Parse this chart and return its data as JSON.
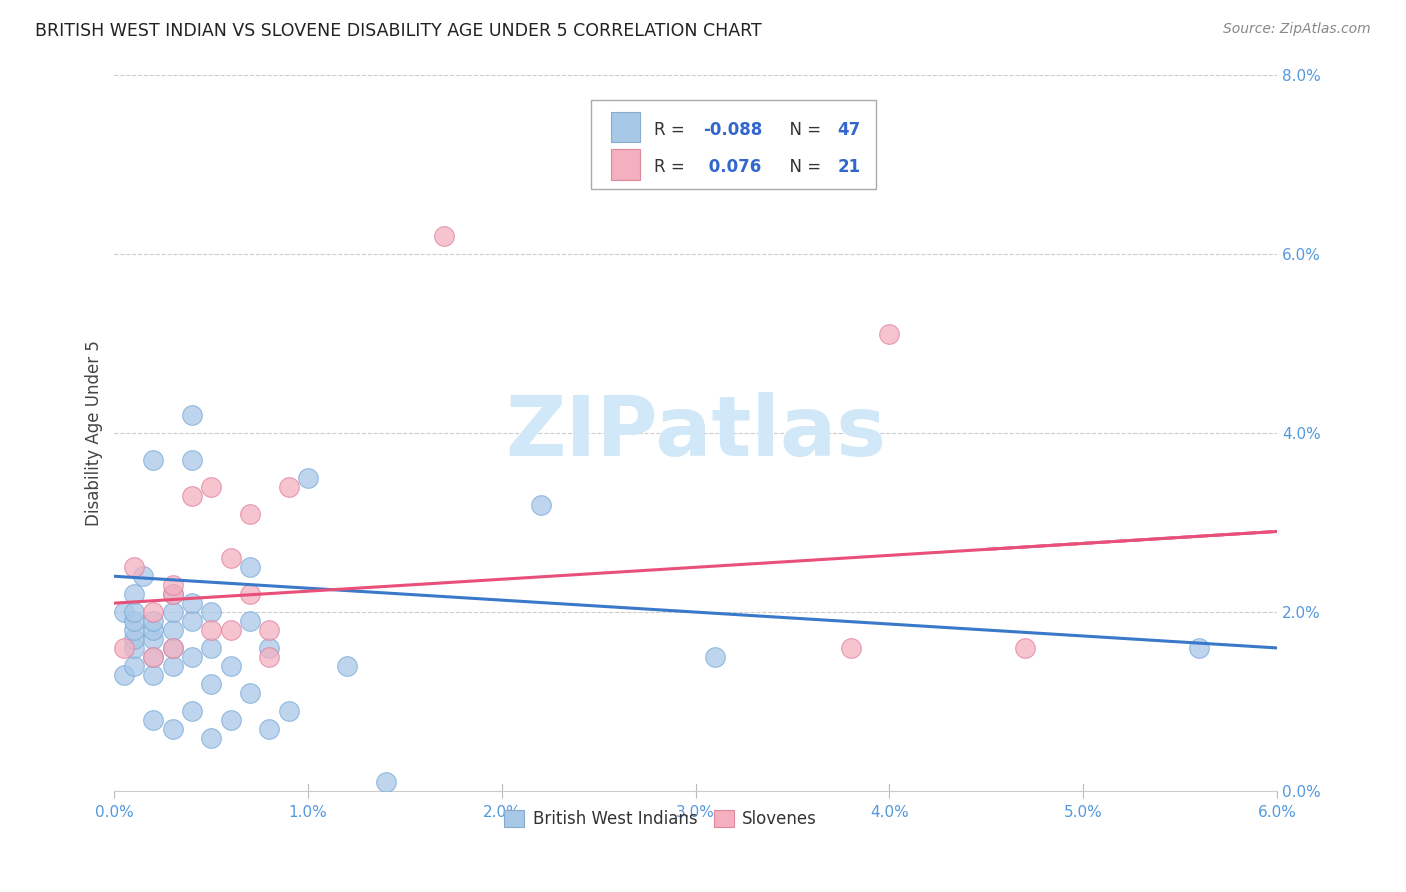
{
  "title": "BRITISH WEST INDIAN VS SLOVENE DISABILITY AGE UNDER 5 CORRELATION CHART",
  "source": "Source: ZipAtlas.com",
  "ylabel": "Disability Age Under 5",
  "xlim": [
    0.0,
    0.06
  ],
  "ylim": [
    0.0,
    0.08
  ],
  "xtick_labels": [
    "0.0%",
    "1.0%",
    "2.0%",
    "3.0%",
    "4.0%",
    "5.0%",
    "6.0%"
  ],
  "ytick_labels": [
    "0.0%",
    "2.0%",
    "4.0%",
    "6.0%",
    "8.0%"
  ],
  "xtick_vals": [
    0.0,
    0.01,
    0.02,
    0.03,
    0.04,
    0.05,
    0.06
  ],
  "ytick_vals": [
    0.0,
    0.02,
    0.04,
    0.06,
    0.08
  ],
  "legend_labels": [
    "British West Indians",
    "Slovenes"
  ],
  "blue_color": "#a8c8e8",
  "pink_color": "#f4b0c0",
  "blue_line_color": "#3a78c9",
  "pink_line_color": "#e8507a",
  "watermark_color": "#d0e8f8",
  "blue_points_x": [
    0.0005,
    0.0005,
    0.001,
    0.001,
    0.001,
    0.001,
    0.001,
    0.001,
    0.001,
    0.0015,
    0.002,
    0.002,
    0.002,
    0.002,
    0.002,
    0.002,
    0.002,
    0.003,
    0.003,
    0.003,
    0.003,
    0.003,
    0.003,
    0.004,
    0.004,
    0.004,
    0.004,
    0.004,
    0.004,
    0.005,
    0.005,
    0.005,
    0.005,
    0.006,
    0.006,
    0.007,
    0.007,
    0.007,
    0.008,
    0.008,
    0.009,
    0.01,
    0.012,
    0.014,
    0.022,
    0.031,
    0.056
  ],
  "blue_points_y": [
    0.013,
    0.02,
    0.014,
    0.016,
    0.017,
    0.018,
    0.019,
    0.02,
    0.022,
    0.024,
    0.008,
    0.013,
    0.015,
    0.017,
    0.018,
    0.019,
    0.037,
    0.007,
    0.014,
    0.016,
    0.018,
    0.02,
    0.022,
    0.009,
    0.015,
    0.019,
    0.021,
    0.037,
    0.042,
    0.006,
    0.012,
    0.016,
    0.02,
    0.008,
    0.014,
    0.011,
    0.019,
    0.025,
    0.007,
    0.016,
    0.009,
    0.035,
    0.014,
    0.001,
    0.032,
    0.015,
    0.016
  ],
  "pink_points_x": [
    0.0005,
    0.001,
    0.002,
    0.002,
    0.003,
    0.003,
    0.003,
    0.004,
    0.005,
    0.005,
    0.006,
    0.006,
    0.007,
    0.007,
    0.008,
    0.008,
    0.009,
    0.017,
    0.038,
    0.04,
    0.047
  ],
  "pink_points_y": [
    0.016,
    0.025,
    0.015,
    0.02,
    0.016,
    0.022,
    0.023,
    0.033,
    0.018,
    0.034,
    0.018,
    0.026,
    0.022,
    0.031,
    0.015,
    0.018,
    0.034,
    0.062,
    0.016,
    0.051,
    0.016
  ],
  "blue_line_x0": 0.0,
  "blue_line_x1": 0.06,
  "blue_line_y0": 0.024,
  "blue_line_y1": 0.016,
  "pink_line_x0": 0.0,
  "pink_line_x1": 0.06,
  "pink_line_y0": 0.021,
  "pink_line_y1": 0.029,
  "legend_r1": "R = -0.088",
  "legend_n1": "N = 47",
  "legend_r2": "R =  0.076",
  "legend_n2": "N = 21"
}
